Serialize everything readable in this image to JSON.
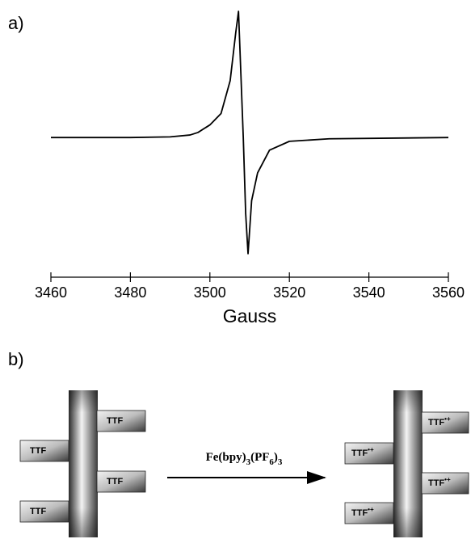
{
  "panel_a_label": "a)",
  "chart_data": {
    "type": "line",
    "x_label": "Gauss",
    "x": [
      3460,
      3480,
      3490,
      3495,
      3497,
      3500,
      3502.8,
      3505.1,
      3506.5,
      3507.2,
      3507.8,
      3508.4,
      3509,
      3509.6,
      3510.5,
      3512,
      3515,
      3520,
      3530,
      3560
    ],
    "y": [
      0,
      0,
      0.005,
      0.02,
      0.04,
      0.1,
      0.19,
      0.45,
      0.83,
      1.0,
      0.5,
      0,
      -0.6,
      -0.92,
      -0.5,
      -0.28,
      -0.1,
      -0.03,
      -0.01,
      0
    ],
    "color": "#000000",
    "xlim": [
      3460,
      3560
    ],
    "ylim": [
      -1.1,
      1.0
    ],
    "xticks": [
      3460,
      3480,
      3500,
      3520,
      3540,
      3560
    ]
  },
  "panel_b_label": "b)",
  "diagram": {
    "left_groups": [
      "TTF",
      "TTF",
      "TTF",
      "TTF"
    ],
    "reagent": [
      "Fe(bpy)",
      "3",
      "(PF",
      "6",
      ")",
      "3"
    ],
    "right_groups": [
      {
        "text": "TTF",
        "sup": "•+"
      },
      {
        "text": "TTF",
        "sup": "•+"
      },
      {
        "text": "TTF",
        "sup": "•+"
      },
      {
        "text": "TTF",
        "sup": "•+"
      }
    ]
  }
}
